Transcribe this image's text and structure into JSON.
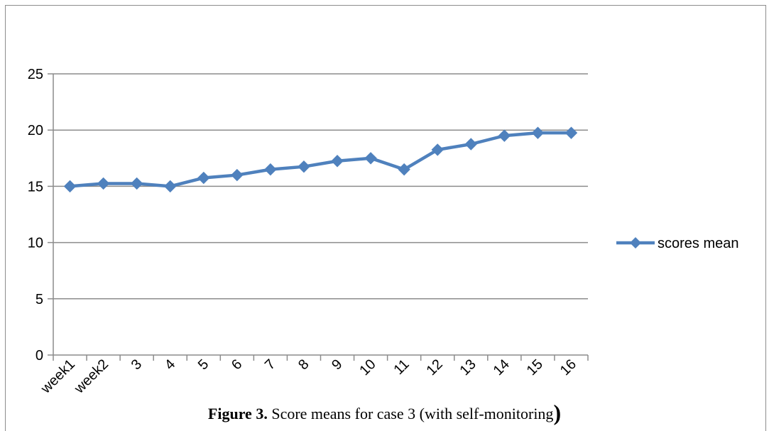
{
  "caption": {
    "label": "Figure 3.",
    "text": " Score means for case 3 (with self-monitoring",
    "closing": ")"
  },
  "chart_data": {
    "type": "line",
    "categories": [
      "week1",
      "week2",
      "3",
      "4",
      "5",
      "6",
      "7",
      "8",
      "9",
      "10",
      "11",
      "12",
      "13",
      "14",
      "15",
      "16"
    ],
    "series": [
      {
        "name": "scores mean",
        "values": [
          15,
          15.25,
          15.25,
          15,
          15.75,
          16,
          16.5,
          16.75,
          17.25,
          17.5,
          16.5,
          18.25,
          18.75,
          19.5,
          19.75,
          19.75
        ],
        "color": "#4f81bd",
        "marker": "diamond"
      }
    ],
    "ylim": [
      0,
      25
    ],
    "yticks": [
      0,
      5,
      10,
      15,
      20,
      25
    ],
    "grid": true,
    "legend": "right"
  }
}
